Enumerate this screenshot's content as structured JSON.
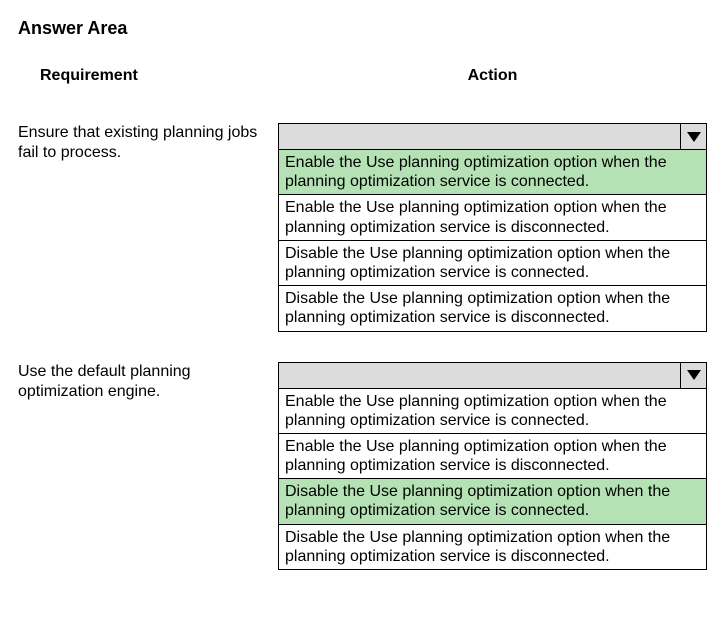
{
  "title": "Answer Area",
  "headers": {
    "requirement": "Requirement",
    "action": "Action"
  },
  "colors": {
    "highlight": "#b5e2b5",
    "dropdown_header": "#dcdcdc",
    "border": "#000000",
    "background": "#ffffff",
    "text": "#000000"
  },
  "questions": [
    {
      "requirement": "Ensure that existing planning jobs fail to process.",
      "highlighted_index": 0,
      "options": [
        "Enable the Use planning optimization option when the planning optimization service is connected.",
        "Enable the Use planning optimization option when the planning optimization service is disconnected.",
        "Disable the Use planning optimization option when the planning optimization service is connected.",
        "Disable the Use planning optimization option when the planning optimization service is disconnected."
      ]
    },
    {
      "requirement": "Use the default planning optimization engine.",
      "highlighted_index": 2,
      "options": [
        "Enable the Use planning optimization option when the planning optimization service is connected.",
        "Enable the Use planning optimization option when the planning optimization service is disconnected.",
        "Disable the Use planning optimization option when the planning optimization service is connected.",
        "Disable the Use planning optimization option when the planning optimization service is disconnected."
      ]
    }
  ]
}
